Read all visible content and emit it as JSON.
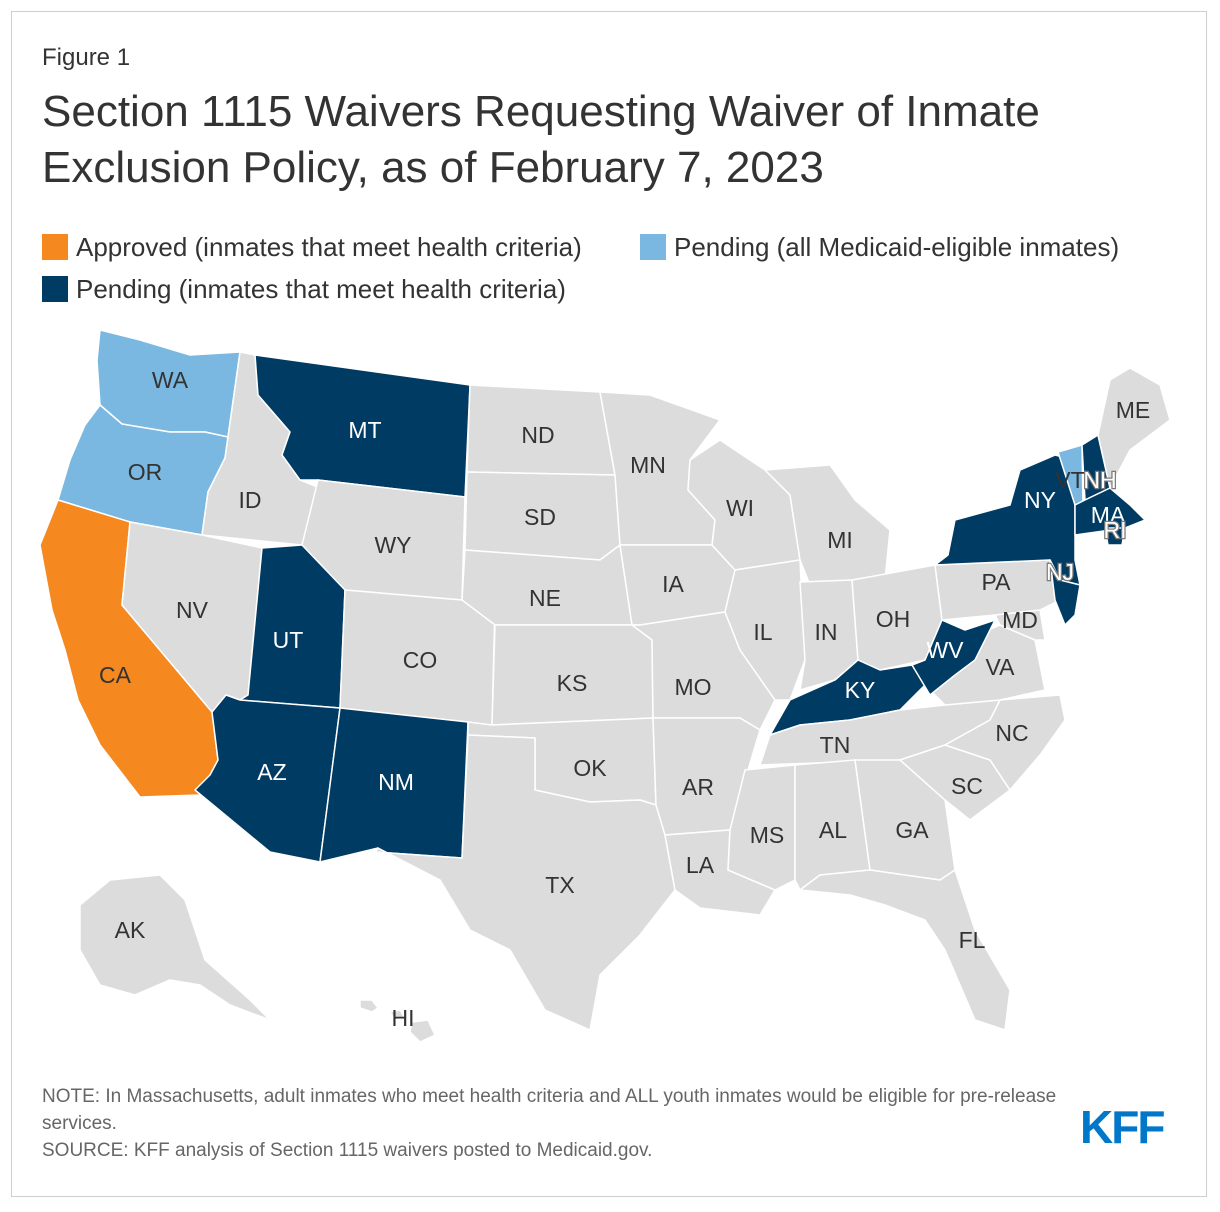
{
  "figure_label": "Figure 1",
  "title": "Section 1115 Waivers Requesting Waiver of Inmate Exclusion Policy, as of February 7, 2023",
  "legend": [
    {
      "key": "approved",
      "label": "Approved (inmates that meet health criteria)",
      "color": "#f5881f"
    },
    {
      "key": "pending_all",
      "label": "Pending (all Medicaid-eligible inmates)",
      "color": "#7ab8e1"
    },
    {
      "key": "pending_health",
      "label": "Pending (inmates that meet health criteria)",
      "color": "#003b63"
    }
  ],
  "default_color": "#dcdcdc",
  "states": [
    {
      "abbr": "WA",
      "status": "pending_all"
    },
    {
      "abbr": "OR",
      "status": "pending_all"
    },
    {
      "abbr": "CA",
      "status": "approved"
    },
    {
      "abbr": "ID",
      "status": "none"
    },
    {
      "abbr": "NV",
      "status": "none"
    },
    {
      "abbr": "MT",
      "status": "pending_health"
    },
    {
      "abbr": "WY",
      "status": "none"
    },
    {
      "abbr": "UT",
      "status": "pending_health"
    },
    {
      "abbr": "CO",
      "status": "none"
    },
    {
      "abbr": "AZ",
      "status": "pending_health"
    },
    {
      "abbr": "NM",
      "status": "pending_health"
    },
    {
      "abbr": "ND",
      "status": "none"
    },
    {
      "abbr": "SD",
      "status": "none"
    },
    {
      "abbr": "NE",
      "status": "none"
    },
    {
      "abbr": "KS",
      "status": "none"
    },
    {
      "abbr": "OK",
      "status": "none"
    },
    {
      "abbr": "TX",
      "status": "none"
    },
    {
      "abbr": "MN",
      "status": "none"
    },
    {
      "abbr": "IA",
      "status": "none"
    },
    {
      "abbr": "MO",
      "status": "none"
    },
    {
      "abbr": "AR",
      "status": "none"
    },
    {
      "abbr": "LA",
      "status": "none"
    },
    {
      "abbr": "WI",
      "status": "none"
    },
    {
      "abbr": "IL",
      "status": "none"
    },
    {
      "abbr": "MI",
      "status": "none"
    },
    {
      "abbr": "IN",
      "status": "none"
    },
    {
      "abbr": "OH",
      "status": "none"
    },
    {
      "abbr": "KY",
      "status": "pending_health"
    },
    {
      "abbr": "TN",
      "status": "none"
    },
    {
      "abbr": "MS",
      "status": "none"
    },
    {
      "abbr": "AL",
      "status": "none"
    },
    {
      "abbr": "GA",
      "status": "none"
    },
    {
      "abbr": "FL",
      "status": "none"
    },
    {
      "abbr": "SC",
      "status": "none"
    },
    {
      "abbr": "NC",
      "status": "none"
    },
    {
      "abbr": "VA",
      "status": "none"
    },
    {
      "abbr": "WV",
      "status": "pending_health"
    },
    {
      "abbr": "MD",
      "status": "none"
    },
    {
      "abbr": "PA",
      "status": "none"
    },
    {
      "abbr": "NY",
      "status": "pending_health"
    },
    {
      "abbr": "NJ",
      "status": "pending_health"
    },
    {
      "abbr": "VT",
      "status": "pending_all"
    },
    {
      "abbr": "NH",
      "status": "pending_health"
    },
    {
      "abbr": "MA",
      "status": "pending_health"
    },
    {
      "abbr": "RI",
      "status": "pending_health"
    },
    {
      "abbr": "ME",
      "status": "none"
    },
    {
      "abbr": "AK",
      "status": "none"
    },
    {
      "abbr": "HI",
      "status": "none"
    }
  ],
  "note": "NOTE: In Massachusetts, adult inmates who meet health criteria and ALL youth inmates would be eligible for pre-release services.",
  "source": "SOURCE: KFF analysis of Section 1115 waivers posted to Medicaid.gov.",
  "logo_text": "KFF"
}
